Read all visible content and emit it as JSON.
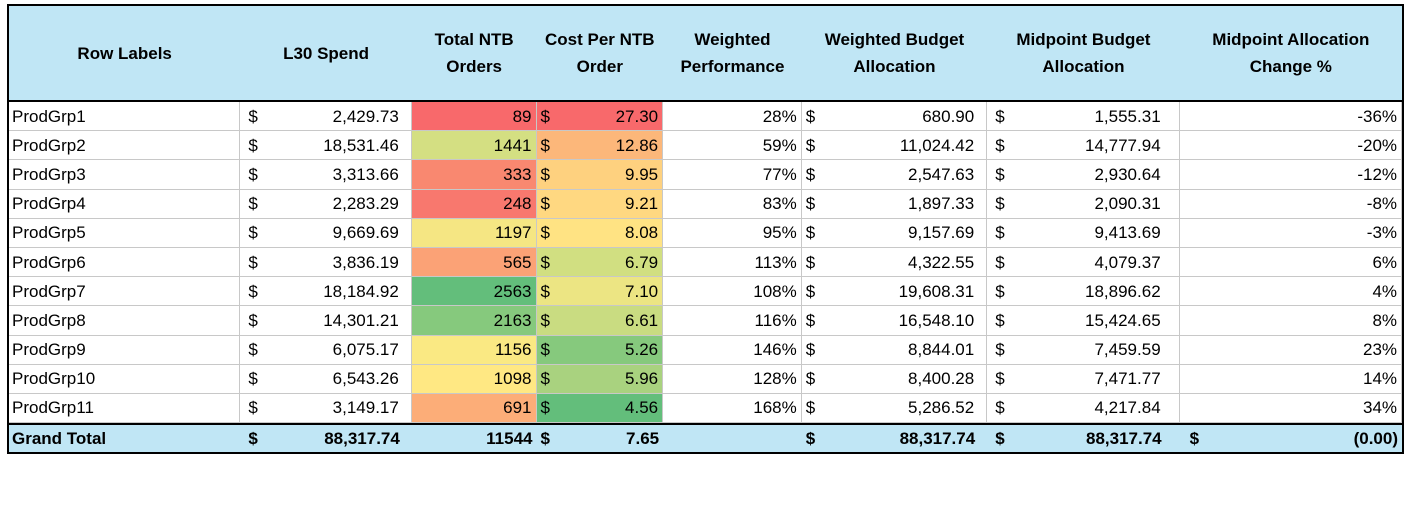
{
  "headers": {
    "row_labels": "Row Labels",
    "l30_spend": "L30 Spend",
    "total_ntb_orders": "Total NTB Orders",
    "cost_per_ntb_order": "Cost Per NTB Order",
    "weighted_performance": "Weighted Performance",
    "weighted_budget_allocation": "Weighted Budget Allocation",
    "midpoint_budget_allocation": "Midpoint Budget Allocation",
    "midpoint_allocation_change": "Midpoint Allocation Change %"
  },
  "currency_symbol": "$",
  "rows": [
    {
      "label": "ProdGrp1",
      "spend": "2,429.73",
      "orders": "89",
      "orders_color": "#f8696b",
      "cpo": "27.30",
      "cpo_color": "#f8696b",
      "perf": "28%",
      "weighted": "680.90",
      "midpoint": "1,555.31",
      "change": "-36%"
    },
    {
      "label": "ProdGrp2",
      "spend": "18,531.46",
      "orders": "1441",
      "orders_color": "#d4df82",
      "cpo": "12.86",
      "cpo_color": "#fcb77a",
      "perf": "59%",
      "weighted": "11,024.42",
      "midpoint": "14,777.94",
      "change": "-20%"
    },
    {
      "label": "ProdGrp3",
      "spend": "3,313.66",
      "orders": "333",
      "orders_color": "#f98870",
      "cpo": "9.95",
      "cpo_color": "#fed17f",
      "perf": "77%",
      "weighted": "2,547.63",
      "midpoint": "2,930.64",
      "change": "-12%"
    },
    {
      "label": "ProdGrp4",
      "spend": "2,283.29",
      "orders": "248",
      "orders_color": "#f8786e",
      "cpo": "9.21",
      "cpo_color": "#ffd881",
      "perf": "83%",
      "weighted": "1,897.33",
      "midpoint": "2,090.31",
      "change": "-8%"
    },
    {
      "label": "ProdGrp5",
      "spend": "9,669.69",
      "orders": "1197",
      "orders_color": "#f5e683",
      "cpo": "8.08",
      "cpo_color": "#ffe383",
      "perf": "95%",
      "weighted": "9,157.69",
      "midpoint": "9,413.69",
      "change": "-3%"
    },
    {
      "label": "ProdGrp6",
      "spend": "3,836.19",
      "orders": "565",
      "orders_color": "#fba276",
      "cpo": "6.79",
      "cpo_color": "#d1df81",
      "perf": "113%",
      "weighted": "4,322.55",
      "midpoint": "4,079.37",
      "change": "6%"
    },
    {
      "label": "ProdGrp7",
      "spend": "18,184.92",
      "orders": "2563",
      "orders_color": "#63be7b",
      "cpo": "7.10",
      "cpo_color": "#ece583",
      "perf": "108%",
      "weighted": "19,608.31",
      "midpoint": "18,896.62",
      "change": "4%"
    },
    {
      "label": "ProdGrp8",
      "spend": "14,301.21",
      "orders": "2163",
      "orders_color": "#86c97d",
      "cpo": "6.61",
      "cpo_color": "#c9dc81",
      "perf": "116%",
      "weighted": "16,548.10",
      "midpoint": "15,424.65",
      "change": "8%"
    },
    {
      "label": "ProdGrp9",
      "spend": "6,075.17",
      "orders": "1156",
      "orders_color": "#fae983",
      "cpo": "5.26",
      "cpo_color": "#86c97d",
      "perf": "146%",
      "weighted": "8,844.01",
      "midpoint": "7,459.59",
      "change": "23%"
    },
    {
      "label": "ProdGrp10",
      "spend": "6,543.26",
      "orders": "1098",
      "orders_color": "#ffe883",
      "cpo": "5.96",
      "cpo_color": "#a9d27f",
      "perf": "128%",
      "weighted": "8,400.28",
      "midpoint": "7,471.77",
      "change": "14%"
    },
    {
      "label": "ProdGrp11",
      "spend": "3,149.17",
      "orders": "691",
      "orders_color": "#fcad78",
      "cpo": "4.56",
      "cpo_color": "#63be7b",
      "perf": "168%",
      "weighted": "5,286.52",
      "midpoint": "4,217.84",
      "change": "34%"
    }
  ],
  "total": {
    "label": "Grand Total",
    "spend": "88,317.74",
    "orders": "11544",
    "cpo": "7.65",
    "perf": "",
    "weighted": "88,317.74",
    "midpoint": "88,317.74",
    "change": "(0.00)"
  }
}
